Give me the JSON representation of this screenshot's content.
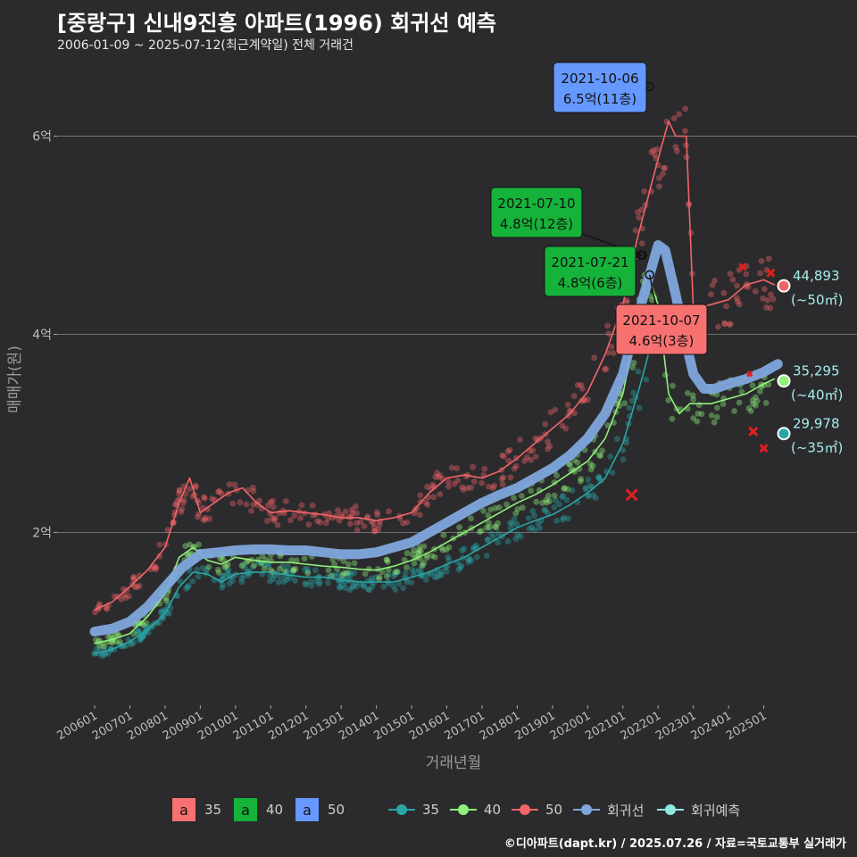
{
  "title": "[중랑구] 신내9진흥 아파트(1996) 회귀선 예측",
  "subtitle": "2006-01-09 ~ 2025-07-12(최근계약일) 전체 거래건",
  "caption": "©디아파트(dapt.kr) / 2025.07.26 / 자료=국토교통부 실거래가",
  "colors": {
    "background": "#2b2b2d",
    "s35": "#2aa6a6",
    "s40": "#8ff07a",
    "s50": "#f26468",
    "regression": "#7fa6dd",
    "forecast": "#8ee8e0",
    "box35": "#f87171",
    "box40": "#16b33a",
    "box50": "#6699ff"
  },
  "chart_data": {
    "type": "scatter",
    "xlabel": "거래년월",
    "ylabel": "매매가(원)",
    "x_range": [
      2006.0,
      2025.8
    ],
    "ylim": [
      0.5,
      6.9
    ],
    "y_ticks": [
      {
        "v": 2,
        "label": "2억"
      },
      {
        "v": 4,
        "label": "4억"
      },
      {
        "v": 6,
        "label": "6억"
      }
    ],
    "x_ticks": [
      "200601",
      "200701",
      "200801",
      "200901",
      "201001",
      "201101",
      "201201",
      "201301",
      "201401",
      "201501",
      "201601",
      "201701",
      "201801",
      "201901",
      "202001",
      "202101",
      "202201",
      "202301",
      "202401",
      "202501"
    ],
    "series": [
      {
        "name": "35",
        "color_key": "s35",
        "values": [
          [
            2006.0,
            0.78
          ],
          [
            2006.5,
            0.82
          ],
          [
            2007.0,
            0.9
          ],
          [
            2007.5,
            1.02
          ],
          [
            2008.0,
            1.18
          ],
          [
            2008.4,
            1.45
          ],
          [
            2008.8,
            1.6
          ],
          [
            2009.2,
            1.58
          ],
          [
            2009.6,
            1.5
          ],
          [
            2010.0,
            1.58
          ],
          [
            2010.5,
            1.6
          ],
          [
            2011.0,
            1.6
          ],
          [
            2011.5,
            1.57
          ],
          [
            2012.0,
            1.55
          ],
          [
            2012.5,
            1.55
          ],
          [
            2013.0,
            1.52
          ],
          [
            2013.5,
            1.5
          ],
          [
            2014.0,
            1.5
          ],
          [
            2014.5,
            1.5
          ],
          [
            2015.0,
            1.55
          ],
          [
            2015.5,
            1.6
          ],
          [
            2016.0,
            1.68
          ],
          [
            2016.5,
            1.75
          ],
          [
            2017.0,
            1.85
          ],
          [
            2017.5,
            1.95
          ],
          [
            2018.0,
            2.05
          ],
          [
            2018.5,
            2.12
          ],
          [
            2019.0,
            2.18
          ],
          [
            2019.5,
            2.28
          ],
          [
            2020.0,
            2.4
          ],
          [
            2020.5,
            2.55
          ],
          [
            2021.0,
            2.9
          ],
          [
            2021.5,
            3.5
          ],
          [
            2021.8,
            3.9
          ]
        ]
      },
      {
        "name": "40",
        "color_key": "s40",
        "values": [
          [
            2006.0,
            0.88
          ],
          [
            2006.5,
            0.92
          ],
          [
            2007.0,
            0.98
          ],
          [
            2007.5,
            1.15
          ],
          [
            2008.0,
            1.38
          ],
          [
            2008.4,
            1.75
          ],
          [
            2008.8,
            1.85
          ],
          [
            2009.2,
            1.72
          ],
          [
            2009.6,
            1.68
          ],
          [
            2010.0,
            1.75
          ],
          [
            2010.5,
            1.72
          ],
          [
            2011.0,
            1.7
          ],
          [
            2011.5,
            1.7
          ],
          [
            2012.0,
            1.68
          ],
          [
            2012.5,
            1.66
          ],
          [
            2013.0,
            1.65
          ],
          [
            2013.5,
            1.63
          ],
          [
            2014.0,
            1.62
          ],
          [
            2014.5,
            1.66
          ],
          [
            2015.0,
            1.72
          ],
          [
            2015.5,
            1.8
          ],
          [
            2016.0,
            1.9
          ],
          [
            2016.5,
            2.0
          ],
          [
            2017.0,
            2.1
          ],
          [
            2017.5,
            2.2
          ],
          [
            2018.0,
            2.3
          ],
          [
            2018.5,
            2.38
          ],
          [
            2019.0,
            2.48
          ],
          [
            2019.5,
            2.6
          ],
          [
            2020.0,
            2.72
          ],
          [
            2020.5,
            2.95
          ],
          [
            2021.0,
            3.4
          ],
          [
            2021.4,
            4.1
          ],
          [
            2021.7,
            4.62
          ],
          [
            2022.0,
            4.3
          ],
          [
            2022.3,
            3.4
          ],
          [
            2022.6,
            3.2
          ],
          [
            2022.9,
            3.3
          ],
          [
            2023.5,
            3.3
          ],
          [
            2024.0,
            3.35
          ],
          [
            2024.5,
            3.4
          ],
          [
            2025.0,
            3.5
          ],
          [
            2025.3,
            3.55
          ]
        ]
      },
      {
        "name": "50",
        "color_key": "s50",
        "values": [
          [
            2006.0,
            1.22
          ],
          [
            2006.5,
            1.3
          ],
          [
            2007.0,
            1.45
          ],
          [
            2007.5,
            1.62
          ],
          [
            2008.0,
            1.85
          ],
          [
            2008.4,
            2.3
          ],
          [
            2008.7,
            2.55
          ],
          [
            2009.0,
            2.2
          ],
          [
            2009.4,
            2.3
          ],
          [
            2009.8,
            2.4
          ],
          [
            2010.2,
            2.45
          ],
          [
            2010.6,
            2.3
          ],
          [
            2011.0,
            2.2
          ],
          [
            2011.5,
            2.22
          ],
          [
            2012.0,
            2.2
          ],
          [
            2012.5,
            2.18
          ],
          [
            2013.0,
            2.15
          ],
          [
            2013.5,
            2.15
          ],
          [
            2014.0,
            2.12
          ],
          [
            2014.5,
            2.15
          ],
          [
            2015.0,
            2.2
          ],
          [
            2015.5,
            2.4
          ],
          [
            2016.0,
            2.55
          ],
          [
            2016.5,
            2.58
          ],
          [
            2017.0,
            2.55
          ],
          [
            2017.5,
            2.62
          ],
          [
            2018.0,
            2.75
          ],
          [
            2018.5,
            2.9
          ],
          [
            2019.0,
            3.05
          ],
          [
            2019.5,
            3.2
          ],
          [
            2020.0,
            3.42
          ],
          [
            2020.5,
            3.8
          ],
          [
            2021.0,
            4.3
          ],
          [
            2021.4,
            4.95
          ],
          [
            2021.8,
            5.5
          ],
          [
            2022.1,
            5.9
          ],
          [
            2022.3,
            6.15
          ],
          [
            2022.5,
            6.0
          ],
          [
            2022.8,
            6.0
          ],
          [
            2023.0,
            4.25
          ],
          [
            2023.5,
            4.3
          ],
          [
            2024.0,
            4.35
          ],
          [
            2024.5,
            4.5
          ],
          [
            2025.0,
            4.55
          ],
          [
            2025.3,
            4.5
          ]
        ]
      },
      {
        "name": "회귀선",
        "color_key": "regression",
        "values": [
          [
            2006.0,
            1.0
          ],
          [
            2006.5,
            1.03
          ],
          [
            2007.0,
            1.1
          ],
          [
            2007.5,
            1.25
          ],
          [
            2008.0,
            1.45
          ],
          [
            2008.5,
            1.65
          ],
          [
            2009.0,
            1.78
          ],
          [
            2009.5,
            1.8
          ],
          [
            2010.0,
            1.82
          ],
          [
            2010.5,
            1.83
          ],
          [
            2011.0,
            1.83
          ],
          [
            2011.5,
            1.82
          ],
          [
            2012.0,
            1.82
          ],
          [
            2012.5,
            1.8
          ],
          [
            2013.0,
            1.78
          ],
          [
            2013.5,
            1.78
          ],
          [
            2014.0,
            1.8
          ],
          [
            2014.5,
            1.85
          ],
          [
            2015.0,
            1.9
          ],
          [
            2015.5,
            2.0
          ],
          [
            2016.0,
            2.1
          ],
          [
            2016.5,
            2.2
          ],
          [
            2017.0,
            2.3
          ],
          [
            2017.5,
            2.38
          ],
          [
            2018.0,
            2.45
          ],
          [
            2018.5,
            2.55
          ],
          [
            2019.0,
            2.65
          ],
          [
            2019.5,
            2.78
          ],
          [
            2020.0,
            2.95
          ],
          [
            2020.5,
            3.2
          ],
          [
            2021.0,
            3.6
          ],
          [
            2021.4,
            4.15
          ],
          [
            2021.8,
            4.65
          ],
          [
            2022.0,
            4.9
          ],
          [
            2022.2,
            4.85
          ],
          [
            2022.5,
            4.4
          ],
          [
            2022.8,
            3.9
          ],
          [
            2023.0,
            3.6
          ],
          [
            2023.3,
            3.45
          ],
          [
            2023.6,
            3.45
          ],
          [
            2024.0,
            3.5
          ],
          [
            2024.5,
            3.55
          ],
          [
            2025.0,
            3.62
          ],
          [
            2025.4,
            3.7
          ]
        ]
      }
    ],
    "forecast": [
      {
        "size": "35",
        "color_key": "s35",
        "value": 2.9978,
        "label": "29,978",
        "sub": "(~35㎡)"
      },
      {
        "size": "40",
        "color_key": "s40",
        "value": 3.5295,
        "label": "35,295",
        "sub": "(~40㎡)"
      },
      {
        "size": "50",
        "color_key": "s50",
        "value": 4.4893,
        "label": "44,893",
        "sub": "(~50㎡)"
      }
    ],
    "annotations": [
      {
        "date": "2021-10-06",
        "price": "6.5억(11층)",
        "color_key": "box50",
        "point_t": 2021.75,
        "point_v": 6.5
      },
      {
        "date": "2021-07-10",
        "price": "4.8억(12층)",
        "color_key": "box40",
        "point_t": 2021.52,
        "point_v": 4.8
      },
      {
        "date": "2021-07-21",
        "price": "4.8억(6층)",
        "color_key": "box40",
        "point_t": 2021.55,
        "point_v": 4.8
      },
      {
        "date": "2021-10-07",
        "price": "4.6억(3층)",
        "color_key": "box35",
        "point_t": 2021.76,
        "point_v": 4.6
      }
    ]
  },
  "legend": {
    "boxes": [
      {
        "glyph": "a",
        "label": "35",
        "color_key": "box35"
      },
      {
        "glyph": "a",
        "label": "40",
        "color_key": "box40"
      },
      {
        "glyph": "a",
        "label": "50",
        "color_key": "box50"
      }
    ],
    "lines": [
      {
        "label": "35",
        "color_key": "s35"
      },
      {
        "label": "40",
        "color_key": "s40"
      },
      {
        "label": "50",
        "color_key": "s50"
      },
      {
        "label": "회귀선",
        "color_key": "regression"
      },
      {
        "label": "회귀예측",
        "color_key": "forecast"
      }
    ]
  }
}
